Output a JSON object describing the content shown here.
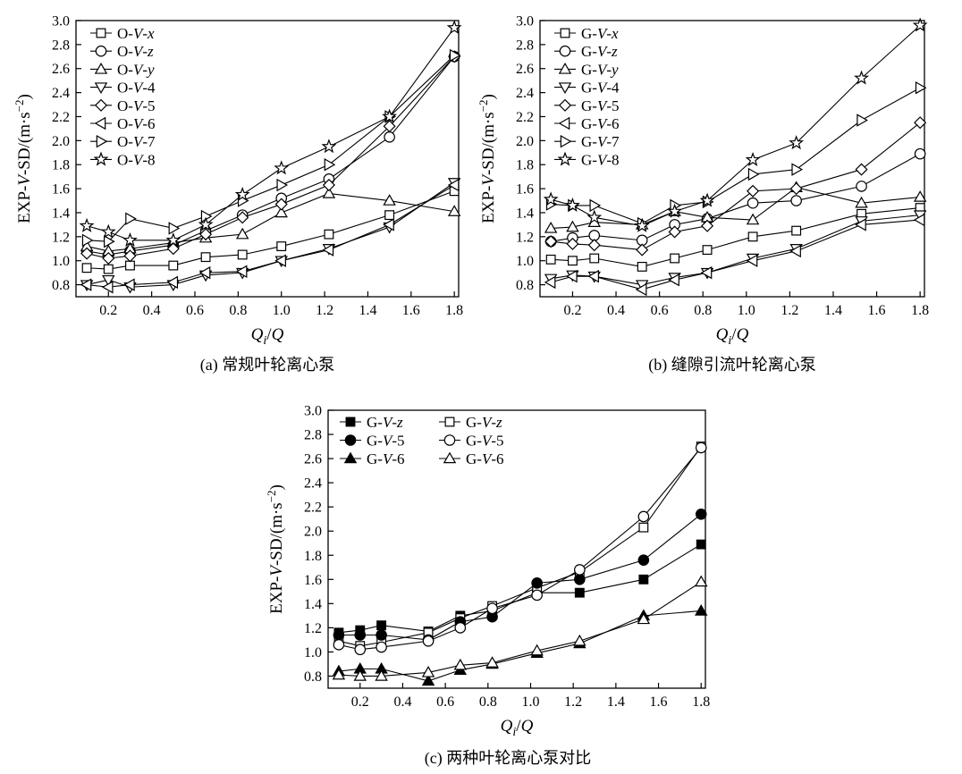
{
  "chart_data": [
    {
      "type": "line",
      "caption": "(a) 常规叶轮离心泵",
      "xlabel": {
        "main": "Q",
        "sub": "i",
        "tail": "/Q"
      },
      "ylabel": "EXP-V-SD/(m·s⁻²)",
      "xlim": [
        0.05,
        1.82
      ],
      "ylim": [
        0.7,
        3.0
      ],
      "xticks": [
        "0.2",
        "0.4",
        "0.6",
        "0.8",
        "1.0",
        "1.2",
        "1.4",
        "1.6",
        "1.8"
      ],
      "yticks": [
        "0.8",
        "1.0",
        "1.2",
        "1.4",
        "1.6",
        "1.8",
        "2.0",
        "2.2",
        "2.4",
        "2.6",
        "2.8",
        "3.0"
      ],
      "grid": false,
      "legend_position": "top-left",
      "x": [
        0.1,
        0.2,
        0.3,
        0.5,
        0.65,
        0.82,
        1.0,
        1.22,
        1.5,
        1.8
      ],
      "series": [
        {
          "name": "O-V-x",
          "prefix": "O-",
          "italic": "V",
          "suffix": "-x",
          "marker": "square",
          "values": [
            0.94,
            0.93,
            0.96,
            0.96,
            1.03,
            1.05,
            1.12,
            1.22,
            1.38,
            1.58
          ]
        },
        {
          "name": "O-V-z",
          "prefix": "O-",
          "italic": "V",
          "suffix": "-z",
          "marker": "circle",
          "values": [
            1.08,
            1.05,
            1.08,
            1.13,
            1.25,
            1.38,
            1.52,
            1.68,
            2.03,
            2.7
          ]
        },
        {
          "name": "O-V-y",
          "prefix": "O-",
          "italic": "V",
          "suffix": "-y",
          "marker": "triangle-up",
          "values": [
            1.12,
            1.08,
            1.1,
            1.15,
            1.19,
            1.22,
            1.4,
            1.56,
            1.5,
            1.41
          ]
        },
        {
          "name": "O-V-4",
          "prefix": "O-",
          "italic": "V",
          "suffix": "-4",
          "marker": "triangle-down",
          "values": [
            0.8,
            0.84,
            0.78,
            0.8,
            0.88,
            0.9,
            1.0,
            1.1,
            1.28,
            1.65
          ]
        },
        {
          "name": "O-V-5",
          "prefix": "O-",
          "italic": "V",
          "suffix": "-5",
          "marker": "diamond",
          "values": [
            1.06,
            1.02,
            1.04,
            1.1,
            1.22,
            1.36,
            1.47,
            1.63,
            2.12,
            2.7
          ]
        },
        {
          "name": "O-V-6",
          "prefix": "O-",
          "italic": "V",
          "suffix": "-6",
          "marker": "triangle-left",
          "values": [
            0.8,
            0.78,
            0.8,
            0.82,
            0.9,
            0.91,
            1.0,
            1.09,
            1.3,
            1.63
          ]
        },
        {
          "name": "O-V-7",
          "prefix": "O-",
          "italic": "V",
          "suffix": "-7",
          "marker": "triangle-right",
          "values": [
            1.17,
            1.16,
            1.35,
            1.27,
            1.37,
            1.5,
            1.63,
            1.8,
            2.2,
            2.71
          ]
        },
        {
          "name": "O-V-8",
          "prefix": "O-",
          "italic": "V",
          "suffix": "-8",
          "marker": "star",
          "values": [
            1.29,
            1.24,
            1.17,
            1.17,
            1.3,
            1.55,
            1.77,
            1.95,
            2.2,
            2.94
          ]
        }
      ]
    },
    {
      "type": "line",
      "caption": "(b) 缝隙引流叶轮离心泵",
      "xlabel": {
        "main": "Q",
        "sub": "i",
        "tail": "/Q"
      },
      "ylabel": "EXP-V-SD/(m·s⁻²)",
      "xlim": [
        0.05,
        1.82
      ],
      "ylim": [
        0.7,
        3.0
      ],
      "xticks": [
        "0.2",
        "0.4",
        "0.6",
        "0.8",
        "1.0",
        "1.2",
        "1.4",
        "1.6",
        "1.8"
      ],
      "yticks": [
        "0.8",
        "1.0",
        "1.2",
        "1.4",
        "1.6",
        "1.8",
        "2.0",
        "2.2",
        "2.4",
        "2.6",
        "2.8",
        "3.0"
      ],
      "grid": false,
      "legend_position": "top-left",
      "x": [
        0.1,
        0.2,
        0.3,
        0.52,
        0.67,
        0.82,
        1.03,
        1.23,
        1.53,
        1.8
      ],
      "series": [
        {
          "name": "G-V-x",
          "prefix": "G-",
          "italic": "V",
          "suffix": "-x",
          "marker": "square",
          "values": [
            1.01,
            1.0,
            1.02,
            0.95,
            1.02,
            1.09,
            1.2,
            1.25,
            1.39,
            1.44
          ]
        },
        {
          "name": "G-V-z",
          "prefix": "G-",
          "italic": "V",
          "suffix": "-z",
          "marker": "circle",
          "values": [
            1.16,
            1.19,
            1.21,
            1.17,
            1.3,
            1.35,
            1.48,
            1.5,
            1.62,
            1.89
          ]
        },
        {
          "name": "G-V-y",
          "prefix": "G-",
          "italic": "V",
          "suffix": "-y",
          "marker": "triangle-up",
          "values": [
            1.27,
            1.28,
            1.32,
            1.3,
            1.41,
            1.36,
            1.34,
            1.61,
            1.48,
            1.53
          ]
        },
        {
          "name": "G-V-4",
          "prefix": "G-",
          "italic": "V",
          "suffix": "-4",
          "marker": "triangle-down",
          "values": [
            0.85,
            0.88,
            0.87,
            0.8,
            0.86,
            0.9,
            1.02,
            1.1,
            1.33,
            1.38
          ]
        },
        {
          "name": "G-V-5",
          "prefix": "G-",
          "italic": "V",
          "suffix": "-5",
          "marker": "diamond",
          "values": [
            1.16,
            1.14,
            1.13,
            1.09,
            1.24,
            1.29,
            1.58,
            1.6,
            1.76,
            2.15
          ]
        },
        {
          "name": "G-V-6",
          "prefix": "G-",
          "italic": "V",
          "suffix": "-6",
          "marker": "triangle-left",
          "values": [
            0.82,
            0.87,
            0.87,
            0.76,
            0.84,
            0.9,
            1.0,
            1.08,
            1.3,
            1.34
          ]
        },
        {
          "name": "G-V-7",
          "prefix": "G-",
          "italic": "V",
          "suffix": "-7",
          "marker": "triangle-right",
          "values": [
            1.47,
            1.46,
            1.46,
            1.31,
            1.46,
            1.49,
            1.72,
            1.76,
            2.17,
            2.44
          ]
        },
        {
          "name": "G-V-8",
          "prefix": "G-",
          "italic": "V",
          "suffix": "-8",
          "marker": "star",
          "values": [
            1.51,
            1.46,
            1.36,
            1.29,
            1.41,
            1.5,
            1.84,
            1.98,
            2.52,
            2.96
          ]
        }
      ]
    },
    {
      "type": "line",
      "caption": "(c) 两种叶轮离心泵对比",
      "xlabel": {
        "main": "Q",
        "sub": "i",
        "tail": "/Q"
      },
      "ylabel": "EXP-V-SD/(m·s⁻²)",
      "xlim": [
        0.05,
        1.82
      ],
      "ylim": [
        0.7,
        3.0
      ],
      "xticks": [
        "0.2",
        "0.4",
        "0.6",
        "0.8",
        "1.0",
        "1.2",
        "1.4",
        "1.6",
        "1.8"
      ],
      "yticks": [
        "0.8",
        "1.0",
        "1.2",
        "1.4",
        "1.6",
        "1.8",
        "2.0",
        "2.2",
        "2.4",
        "2.6",
        "2.8",
        "3.0"
      ],
      "grid": false,
      "legend_position": "top-left",
      "x": [
        0.1,
        0.2,
        0.3,
        0.52,
        0.67,
        0.82,
        1.03,
        1.23,
        1.53,
        1.8
      ],
      "series": [
        {
          "name": "G-V-z",
          "prefix": "G-",
          "italic": "V",
          "suffix": "-z",
          "marker": "square",
          "filled": true,
          "values": [
            1.16,
            1.18,
            1.22,
            1.17,
            1.3,
            1.34,
            1.49,
            1.49,
            1.6,
            1.89
          ]
        },
        {
          "name": "G-V-z",
          "prefix": "G-",
          "italic": "V",
          "suffix": "-z",
          "marker": "square",
          "filled": false,
          "values": [
            1.09,
            1.05,
            1.08,
            1.16,
            1.28,
            1.38,
            1.53,
            1.66,
            2.03,
            2.7
          ]
        },
        {
          "name": "G-V-5",
          "prefix": "G-",
          "italic": "V",
          "suffix": "-5",
          "marker": "circle",
          "filled": true,
          "values": [
            1.14,
            1.14,
            1.14,
            1.1,
            1.25,
            1.29,
            1.57,
            1.6,
            1.76,
            2.14
          ]
        },
        {
          "name": "G-V-5",
          "prefix": "G-",
          "italic": "V",
          "suffix": "-5",
          "marker": "circle",
          "filled": false,
          "values": [
            1.06,
            1.02,
            1.04,
            1.09,
            1.2,
            1.36,
            1.47,
            1.68,
            2.12,
            2.69
          ]
        },
        {
          "name": "G-V-6",
          "prefix": "G-",
          "italic": "V",
          "suffix": "-6",
          "marker": "triangle-up",
          "filled": true,
          "values": [
            0.84,
            0.86,
            0.86,
            0.76,
            0.85,
            0.9,
            0.99,
            1.07,
            1.3,
            1.34
          ]
        },
        {
          "name": "G-V-6",
          "prefix": "G-",
          "italic": "V",
          "suffix": "-6",
          "marker": "triangle-up",
          "filled": false,
          "values": [
            0.81,
            0.8,
            0.8,
            0.83,
            0.89,
            0.91,
            1.01,
            1.09,
            1.27,
            1.58
          ]
        }
      ]
    }
  ]
}
